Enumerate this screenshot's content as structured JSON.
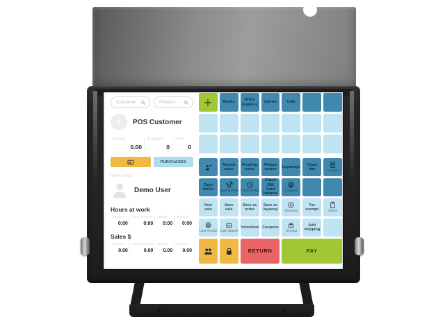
{
  "colors": {
    "lime_green": "#a2c735",
    "dark_blue": "#4088ad",
    "light_blue": "#bfe3f2",
    "yellow": "#f0b845",
    "red": "#e96464"
  },
  "pos": {
    "search": {
      "customer_placeholder": "Customer",
      "product_placeholder": "Product"
    },
    "customer": {
      "name": "POS Customer",
      "stats": [
        {
          "label": "STORE",
          "value": "0.00"
        },
        {
          "label": "REWARD",
          "value": "0"
        },
        {
          "label": "VISIT",
          "value": "0"
        }
      ],
      "purchases_label": "PURCHASES"
    },
    "employee": {
      "section_label": "EMPLOYEE",
      "name": "Demo User"
    },
    "hours": {
      "title": "Hours at work",
      "columns": [
        "TODAY",
        "YESTERDAY",
        "WEEK",
        "MONTH"
      ],
      "values": [
        "0:00",
        "0:00",
        "0:00",
        "0:00"
      ]
    },
    "sales": {
      "title": "Sales $",
      "columns": [
        "TODAY",
        "YESTERDAY",
        "WEEK",
        "MONTH"
      ],
      "values": [
        "0.00",
        "0.00",
        "0.00",
        "0.00"
      ]
    },
    "grid": {
      "rows": [
        {
          "cells": [
            {
              "type": "green",
              "icon": "plus"
            },
            {
              "type": "dark",
              "label": "Books"
            },
            {
              "type": "dark",
              "label": "Office Supplies"
            },
            {
              "type": "dark",
              "label": "Games"
            },
            {
              "type": "dark",
              "label": "Cafe"
            },
            {
              "type": "dark"
            },
            {
              "type": "dark"
            }
          ]
        },
        {
          "cells": [
            {
              "type": "light"
            },
            {
              "type": "light"
            },
            {
              "type": "light"
            },
            {
              "type": "light"
            },
            {
              "type": "light"
            },
            {
              "type": "light"
            },
            {
              "type": "light"
            }
          ]
        },
        {
          "cells": [
            {
              "type": "light"
            },
            {
              "type": "light"
            },
            {
              "type": "light"
            },
            {
              "type": "light"
            },
            {
              "type": "light"
            },
            {
              "type": "light"
            },
            {
              "type": "light"
            }
          ]
        },
        {
          "cells": [
            {
              "type": "dark",
              "icon": "person-plus"
            },
            {
              "type": "dark",
              "label": "Recent sales"
            },
            {
              "type": "dark",
              "label": "Pending sales"
            },
            {
              "type": "dark",
              "label": "Pickup orders"
            },
            {
              "type": "dark",
              "label": "Layaways"
            },
            {
              "type": "dark",
              "label": "Close day"
            },
            {
              "type": "dark",
              "icon": "document",
              "sub": "X report"
            }
          ]
        },
        {
          "cells": [
            {
              "type": "dark",
              "label": "Cash In/Out"
            },
            {
              "type": "dark",
              "icon": "cart-search",
              "sub": "Stock & Price"
            },
            {
              "type": "dark",
              "icon": "clock",
              "sub": "Clock In/Out"
            },
            {
              "type": "dark",
              "label": "Check Gift Card balance"
            },
            {
              "type": "dark",
              "icon": "printer",
              "sub": "Coupons"
            },
            {
              "type": "dark"
            },
            {
              "type": "dark"
            }
          ]
        },
        {
          "cells": [
            {
              "type": "light",
              "label": "New sale"
            },
            {
              "type": "light",
              "label": "Save sale"
            },
            {
              "type": "light",
              "label": "Save as order"
            },
            {
              "type": "light",
              "label": "Save as layaway"
            },
            {
              "type": "light",
              "icon": "discount",
              "sub": "Discount"
            },
            {
              "type": "light",
              "label": "Tax exempt"
            },
            {
              "type": "light",
              "icon": "notes",
              "sub": "Notes"
            }
          ]
        },
        {
          "cells": [
            {
              "type": "light",
              "icon": "printer",
              "sub": "Last receipt"
            },
            {
              "type": "light",
              "icon": "drawer",
              "sub": "Cash drawer"
            },
            {
              "type": "light",
              "label": "Promotions"
            },
            {
              "type": "light",
              "label": "Coupons"
            },
            {
              "type": "light",
              "icon": "gift",
              "sub": "Receipt"
            },
            {
              "type": "light",
              "label": "Add shipping"
            },
            {
              "type": "light"
            }
          ]
        },
        {
          "cells": [
            {
              "type": "yellow",
              "icon": "people"
            },
            {
              "type": "yellow",
              "icon": "lock"
            },
            {
              "type": "red",
              "label": "RETURN",
              "span": 2
            },
            {
              "type": "green",
              "label": "PAY",
              "span": 3
            }
          ]
        }
      ]
    }
  }
}
